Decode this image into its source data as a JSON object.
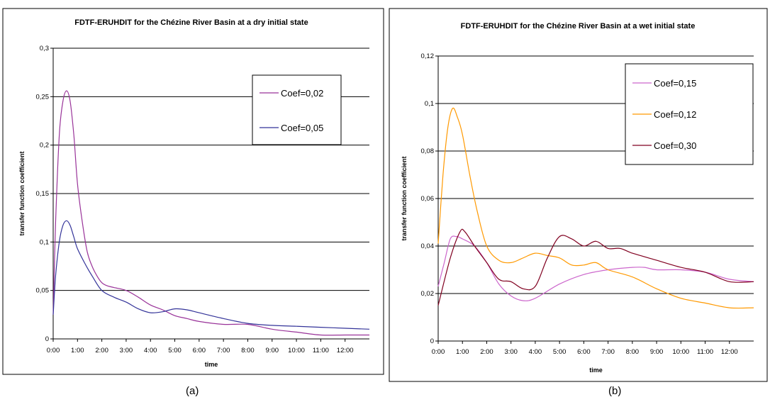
{
  "captions": {
    "a": "(a)",
    "b": "(b)"
  },
  "chart_data": [
    {
      "type": "line",
      "title": "FDTF-ERUHDIT for the Chézine River Basin at a dry initial state",
      "xlabel": "time",
      "ylabel": "transfer function coefficient",
      "ylim": [
        0,
        0.3
      ],
      "xlim": [
        0,
        13
      ],
      "y_ticks": [
        0,
        0.05,
        0.1,
        0.15,
        0.2,
        0.25,
        0.3
      ],
      "y_tick_labels": [
        "0",
        "0,05",
        "0,1",
        "0,15",
        "0,2",
        "0,25",
        "0,3"
      ],
      "x_ticks": [
        0,
        1,
        2,
        3,
        4,
        5,
        6,
        7,
        8,
        9,
        10,
        11,
        12
      ],
      "x_tick_labels": [
        "0:00",
        "1:00",
        "2:00",
        "3:00",
        "4:00",
        "5:00",
        "6:00",
        "7:00",
        "8:00",
        "9:00",
        "10:00",
        "11:00",
        "12:00"
      ],
      "grid": true,
      "legend_position": "top-right",
      "series": [
        {
          "name": "Coef=0,02",
          "color": "#993399",
          "x": [
            0,
            0.1,
            0.25,
            0.4,
            0.55,
            0.7,
            0.85,
            1.0,
            1.2,
            1.4,
            1.6,
            1.8,
            2.0,
            2.2,
            2.5,
            3.0,
            3.5,
            4.0,
            4.5,
            5.0,
            5.5,
            6.0,
            7.0,
            8.0,
            9.0,
            10.0,
            11.0,
            12.0,
            13.0
          ],
          "values": [
            0.025,
            0.12,
            0.21,
            0.245,
            0.256,
            0.245,
            0.21,
            0.16,
            0.12,
            0.09,
            0.075,
            0.065,
            0.058,
            0.055,
            0.053,
            0.05,
            0.043,
            0.035,
            0.03,
            0.024,
            0.021,
            0.018,
            0.015,
            0.015,
            0.01,
            0.007,
            0.004,
            0.004,
            0.004
          ]
        },
        {
          "name": "Coef=0,05",
          "color": "#333399",
          "x": [
            0,
            0.1,
            0.25,
            0.4,
            0.55,
            0.7,
            0.85,
            1.0,
            1.3,
            1.6,
            2.0,
            2.5,
            3.0,
            3.5,
            4.0,
            4.5,
            5.0,
            5.5,
            6.0,
            7.0,
            8.0,
            9.0,
            10.0,
            11.0,
            12.0,
            13.0
          ],
          "values": [
            0.025,
            0.065,
            0.1,
            0.117,
            0.122,
            0.117,
            0.105,
            0.093,
            0.078,
            0.065,
            0.05,
            0.043,
            0.038,
            0.031,
            0.027,
            0.028,
            0.031,
            0.03,
            0.027,
            0.021,
            0.016,
            0.014,
            0.013,
            0.012,
            0.011,
            0.01
          ]
        }
      ]
    },
    {
      "type": "line",
      "title": "FDTF-ERUHDIT for the Chézine River Basin at a wet initial state",
      "xlabel": "time",
      "ylabel": "transfer function coefficient",
      "ylim": [
        0,
        0.12
      ],
      "xlim": [
        0,
        13
      ],
      "y_ticks": [
        0,
        0.02,
        0.04,
        0.06,
        0.08,
        0.1,
        0.12
      ],
      "y_tick_labels": [
        "0",
        "0,02",
        "0,04",
        "0,06",
        "0,08",
        "0,1",
        "0,12"
      ],
      "x_ticks": [
        0,
        1,
        2,
        3,
        4,
        5,
        6,
        7,
        8,
        9,
        10,
        11,
        12
      ],
      "x_tick_labels": [
        "0:00",
        "1:00",
        "2:00",
        "3:00",
        "4:00",
        "5:00",
        "6:00",
        "7:00",
        "8:00",
        "9:00",
        "10:00",
        "11:00",
        "12:00"
      ],
      "grid": true,
      "legend_position": "top-right",
      "series": [
        {
          "name": "Coef=0,15",
          "color": "#cc66cc",
          "x": [
            0,
            0.25,
            0.5,
            0.75,
            1.0,
            1.5,
            2.0,
            2.5,
            3.0,
            3.5,
            4.0,
            5.0,
            6.0,
            7.0,
            8.0,
            8.5,
            9.0,
            10.0,
            11.0,
            12.0,
            13.0
          ],
          "values": [
            0.023,
            0.033,
            0.043,
            0.044,
            0.043,
            0.04,
            0.033,
            0.024,
            0.019,
            0.017,
            0.018,
            0.024,
            0.028,
            0.03,
            0.031,
            0.031,
            0.03,
            0.03,
            0.029,
            0.026,
            0.025
          ]
        },
        {
          "name": "Coef=0,12",
          "color": "#ff9900",
          "x": [
            0,
            0.2,
            0.4,
            0.6,
            0.8,
            1.0,
            1.3,
            1.6,
            2.0,
            2.5,
            3.0,
            3.5,
            4.0,
            4.5,
            5.0,
            5.5,
            6.0,
            6.5,
            7.0,
            8.0,
            9.0,
            10.0,
            11.0,
            12.0,
            13.0
          ],
          "values": [
            0.041,
            0.07,
            0.09,
            0.098,
            0.094,
            0.087,
            0.07,
            0.055,
            0.04,
            0.034,
            0.033,
            0.035,
            0.037,
            0.036,
            0.035,
            0.032,
            0.032,
            0.033,
            0.03,
            0.027,
            0.022,
            0.018,
            0.016,
            0.014,
            0.014
          ]
        },
        {
          "name": "Coef=0,30",
          "color": "#800020",
          "x": [
            0,
            0.5,
            0.9,
            1.1,
            1.5,
            2.0,
            2.5,
            3.0,
            3.5,
            4.0,
            4.5,
            5.0,
            5.5,
            6.0,
            6.5,
            7.0,
            7.5,
            8.0,
            9.0,
            10.0,
            11.0,
            12.0,
            13.0
          ],
          "values": [
            0.015,
            0.035,
            0.046,
            0.046,
            0.04,
            0.033,
            0.026,
            0.025,
            0.022,
            0.023,
            0.035,
            0.044,
            0.043,
            0.04,
            0.042,
            0.039,
            0.039,
            0.037,
            0.034,
            0.031,
            0.029,
            0.025,
            0.025
          ]
        }
      ]
    }
  ]
}
